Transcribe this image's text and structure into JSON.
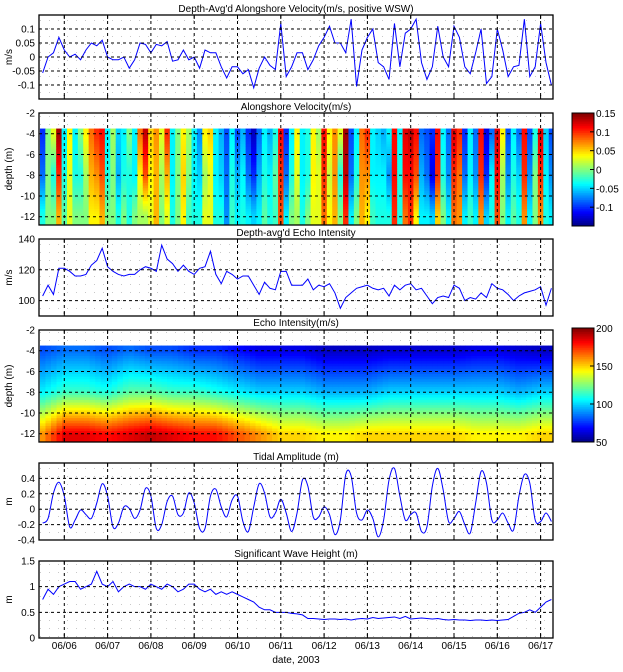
{
  "figure": {
    "xlabel": "date, 2003",
    "date_ticks": [
      "06/06",
      "06/07",
      "06/08",
      "06/09",
      "06/10",
      "06/11",
      "06/12",
      "06/13",
      "06/14",
      "06/15",
      "06/16",
      "06/17"
    ],
    "line_color": "#0000ff",
    "grid": "dashed"
  },
  "time_3h": [
    "06/05 12:00",
    "06/05 15:00",
    "06/05 18:00",
    "06/05 21:00",
    "06/06 00:00",
    "06/06 03:00",
    "06/06 06:00",
    "06/06 09:00",
    "06/06 12:00",
    "06/06 15:00",
    "06/06 18:00",
    "06/06 21:00",
    "06/07 00:00",
    "06/07 03:00",
    "06/07 06:00",
    "06/07 09:00",
    "06/07 12:00",
    "06/07 15:00",
    "06/07 18:00",
    "06/07 21:00",
    "06/08 00:00",
    "06/08 03:00",
    "06/08 06:00",
    "06/08 09:00",
    "06/08 12:00",
    "06/08 15:00",
    "06/08 18:00",
    "06/08 21:00",
    "06/09 00:00",
    "06/09 03:00",
    "06/09 06:00",
    "06/09 09:00",
    "06/09 12:00",
    "06/09 15:00",
    "06/09 18:00",
    "06/09 21:00",
    "06/10 00:00",
    "06/10 03:00",
    "06/10 06:00",
    "06/10 09:00",
    "06/10 12:00",
    "06/10 15:00",
    "06/10 18:00",
    "06/10 21:00",
    "06/11 00:00",
    "06/11 03:00",
    "06/11 06:00",
    "06/11 09:00",
    "06/11 12:00",
    "06/11 15:00",
    "06/11 18:00",
    "06/11 21:00",
    "06/12 00:00",
    "06/12 03:00",
    "06/12 06:00",
    "06/12 09:00",
    "06/12 12:00",
    "06/12 15:00",
    "06/12 18:00",
    "06/12 21:00",
    "06/13 00:00",
    "06/13 03:00",
    "06/13 06:00",
    "06/13 09:00",
    "06/13 12:00",
    "06/13 15:00",
    "06/13 18:00",
    "06/13 21:00",
    "06/14 00:00",
    "06/14 03:00",
    "06/14 06:00",
    "06/14 09:00",
    "06/14 12:00",
    "06/14 15:00",
    "06/14 18:00",
    "06/14 21:00",
    "06/15 00:00",
    "06/15 03:00",
    "06/15 06:00",
    "06/15 09:00",
    "06/15 12:00",
    "06/15 15:00",
    "06/15 18:00",
    "06/15 21:00",
    "06/16 00:00",
    "06/16 03:00",
    "06/16 06:00",
    "06/16 09:00",
    "06/16 12:00",
    "06/16 15:00",
    "06/16 18:00",
    "06/16 21:00",
    "06/17 00:00",
    "06/17 03:00",
    "06/17 06:00"
  ],
  "chart_data": [
    {
      "type": "line",
      "title": "Depth-Avg'd Alongshore Velocity(m/s, positive WSW)",
      "ylabel": "m/s",
      "ylim": [
        -0.15,
        0.15
      ],
      "yticks": [
        "-0.1",
        "-0.05",
        "0",
        "0.05",
        "0.1"
      ],
      "x_ref": "time_3h",
      "values": [
        -0.057,
        0.0,
        0.015,
        0.07,
        0.025,
        0.0,
        0.01,
        -0.01,
        0.025,
        0.05,
        0.04,
        0.06,
        0.0,
        -0.01,
        -0.01,
        0.0,
        -0.04,
        -0.01,
        0.05,
        0.045,
        0.015,
        0.045,
        0.04,
        0.055,
        -0.015,
        -0.01,
        0.025,
        -0.01,
        0.0,
        -0.04,
        0.025,
        0.015,
        0.015,
        -0.035,
        -0.075,
        -0.035,
        -0.035,
        -0.06,
        -0.045,
        -0.11,
        -0.04,
        0.0,
        -0.03,
        -0.045,
        0.12,
        -0.07,
        -0.035,
        0.015,
        0.015,
        -0.045,
        -0.01,
        0.04,
        0.07,
        0.11,
        0.05,
        0.05,
        0.015,
        0.135,
        -0.105,
        0.025,
        0.07,
        0.1,
        -0.02,
        -0.035,
        -0.08,
        0.12,
        -0.035,
        0.085,
        0.1,
        0.135,
        -0.02,
        -0.08,
        -0.035,
        0.11,
        0.0,
        -0.035,
        0.11,
        0.07,
        -0.035,
        -0.06,
        0.015,
        0.1,
        -0.095,
        -0.07,
        0.1,
        0.025,
        -0.07,
        -0.035,
        -0.03,
        0.135,
        -0.07,
        -0.035,
        0.12,
        -0.02,
        -0.1
      ]
    },
    {
      "type": "heatmap",
      "title": "Alongshore Velocity(m/s)",
      "ylabel": "depth (m)",
      "ylim": [
        -12.8,
        -2
      ],
      "yticks": [
        "-2",
        "-4",
        "-6",
        "-8",
        "-10",
        "-12"
      ],
      "depth_range": [
        -3.5,
        -12.6
      ],
      "depths": [
        -4,
        -8,
        -12
      ],
      "x_ref": "time_3h",
      "colormap": "jet",
      "clim": [
        -0.15,
        0.15
      ],
      "colorbar_ticks": [
        "0.15",
        "0.1",
        "0.05",
        "0",
        "-0.05",
        "-0.1"
      ],
      "values": [
        [
          -0.1,
          -0.08,
          -0.03
        ],
        [
          0,
          0,
          0
        ],
        [
          0.03,
          -0.03,
          0
        ],
        [
          0.14,
          0.1,
          0.06
        ],
        [
          -0.04,
          -0.03,
          -0.01
        ],
        [
          0.04,
          0.03,
          0.03
        ],
        [
          -0.04,
          -0.03,
          0
        ],
        [
          0,
          -0.03,
          0
        ],
        [
          0.04,
          0.01,
          0
        ],
        [
          0.08,
          0.06,
          0.04
        ],
        [
          0.1,
          0.07,
          0.04
        ],
        [
          0.11,
          0.09,
          0.06
        ],
        [
          -0.04,
          -0.03,
          0
        ],
        [
          0.01,
          0,
          0
        ],
        [
          -0.05,
          -0.06,
          -0.03
        ],
        [
          -0.04,
          -0.03,
          0
        ],
        [
          0,
          -0.03,
          -0.03
        ],
        [
          -0.04,
          -0.04,
          0
        ],
        [
          0.08,
          0.04,
          0.01
        ],
        [
          0.13,
          0.09,
          0.01
        ],
        [
          0.05,
          0.04,
          0.03
        ],
        [
          0.07,
          0.06,
          0.06
        ],
        [
          0.03,
          0.01,
          0
        ],
        [
          0.1,
          0.06,
          0.03
        ],
        [
          -0.04,
          -0.04,
          -0.03
        ],
        [
          0,
          0,
          0
        ],
        [
          0.04,
          0.05,
          0.04
        ],
        [
          0.01,
          0,
          -0.02
        ],
        [
          -0.04,
          -0.04,
          -0.03
        ],
        [
          -0.07,
          -0.05,
          -0.03
        ],
        [
          0.04,
          0.01,
          0.03
        ],
        [
          0.05,
          0.03,
          0.03
        ],
        [
          -0.04,
          -0.04,
          -0.03
        ],
        [
          -0.06,
          -0.05,
          -0.03
        ],
        [
          -0.09,
          -0.08,
          -0.07
        ],
        [
          -0.04,
          -0.03,
          -0.02
        ],
        [
          -0.09,
          -0.06,
          -0.04
        ],
        [
          -0.06,
          -0.04,
          -0.03
        ],
        [
          -0.1,
          -0.08,
          -0.04
        ],
        [
          -0.13,
          -0.1,
          -0.05
        ],
        [
          -0.08,
          -0.06,
          -0.04
        ],
        [
          -0.04,
          -0.03,
          -0.01
        ],
        [
          -0.06,
          -0.04,
          -0.03
        ],
        [
          -0.03,
          -0.01,
          -0.02
        ],
        [
          0.11,
          0.1,
          0.09
        ],
        [
          -0.1,
          -0.08,
          -0.04
        ],
        [
          -0.04,
          -0.03,
          0
        ],
        [
          0.04,
          0.03,
          0.01
        ],
        [
          -0.04,
          -0.04,
          -0.03
        ],
        [
          -0.03,
          -0.03,
          0
        ],
        [
          0.04,
          0.04,
          0.03
        ],
        [
          0.01,
          0.03,
          0.03
        ],
        [
          0.11,
          0.1,
          0.08
        ],
        [
          0.04,
          0.02,
          0.04
        ],
        [
          0.07,
          0.07,
          0.06
        ],
        [
          0.03,
          -0.03,
          0
        ],
        [
          0.14,
          0.13,
          0.1
        ],
        [
          -0.09,
          -0.08,
          -0.04
        ],
        [
          -0.04,
          -0.03,
          0
        ],
        [
          0.08,
          0.07,
          0.06
        ],
        [
          0.1,
          0.07,
          0.04
        ],
        [
          -0.04,
          -0.04,
          -0.02
        ],
        [
          -0.05,
          -0.04,
          -0.03
        ],
        [
          -0.06,
          -0.04,
          -0.03
        ],
        [
          -0.04,
          -0.07,
          -0.03
        ],
        [
          0.11,
          0.11,
          0.1
        ],
        [
          -0.04,
          -0.03,
          -0.03
        ],
        [
          0.12,
          0.11,
          0.08
        ],
        [
          0.13,
          0.11,
          0.1
        ],
        [
          0.11,
          0.09,
          0.04
        ],
        [
          -0.08,
          -0.06,
          -0.04
        ],
        [
          -0.09,
          -0.08,
          -0.04
        ],
        [
          -0.1,
          -0.12,
          -0.05
        ],
        [
          0.11,
          0.1,
          0.05
        ],
        [
          -0.04,
          -0.03,
          0
        ],
        [
          -0.08,
          -0.07,
          -0.04
        ],
        [
          0.12,
          0.1,
          0.08
        ],
        [
          0.1,
          0.08,
          0.07
        ],
        [
          -0.1,
          -0.08,
          -0.04
        ],
        [
          -0.04,
          -0.04,
          -0.02
        ],
        [
          -0.08,
          -0.07,
          -0.04
        ],
        [
          0.11,
          0.1,
          0.07
        ],
        [
          -0.12,
          -0.1,
          -0.05
        ],
        [
          -0.08,
          -0.04,
          -0.03
        ],
        [
          0.12,
          0.11,
          0.09
        ],
        [
          0.04,
          0.01,
          0
        ],
        [
          -0.09,
          -0.07,
          -0.04
        ],
        [
          -0.04,
          -0.03,
          -0.01
        ],
        [
          -0.08,
          -0.05,
          -0.03
        ],
        [
          0.11,
          0.1,
          0.07
        ],
        [
          -0.09,
          -0.07,
          -0.04
        ],
        [
          -0.03,
          0,
          0
        ],
        [
          0.12,
          0.1,
          0.07
        ],
        [
          -0.05,
          -0.04,
          -0.03
        ],
        [
          -0.09,
          -0.07,
          -0.04
        ]
      ]
    },
    {
      "type": "line",
      "title": "Depth-avg'd Echo Intensity",
      "ylabel": "m/s",
      "ylim": [
        90,
        140
      ],
      "yticks": [
        "100",
        "120",
        "140"
      ],
      "x_ref": "time_3h",
      "values": [
        103,
        110,
        104,
        121,
        121,
        119,
        116,
        116,
        117,
        123,
        126,
        134,
        122,
        119,
        117,
        116,
        117,
        117,
        120,
        122,
        121,
        119,
        136,
        127,
        124,
        119,
        123,
        119,
        117,
        121,
        122,
        132,
        117,
        111,
        119,
        117,
        114,
        116,
        116,
        110,
        104,
        112,
        108,
        107,
        119,
        119,
        110,
        110,
        110,
        114,
        107,
        110,
        109,
        111,
        105,
        95,
        102,
        105,
        108,
        109,
        110,
        108,
        107,
        108,
        103,
        110,
        107,
        110,
        111,
        107,
        108,
        103,
        98,
        102,
        103,
        102,
        110,
        108,
        100,
        102,
        101,
        105,
        102,
        111,
        108,
        107,
        104,
        100,
        103,
        105,
        106,
        107,
        109,
        97,
        108
      ]
    },
    {
      "type": "heatmap",
      "title": "Echo Intensity(m/s)",
      "ylabel": "depth (m)",
      "ylim": [
        -12.8,
        -2
      ],
      "yticks": [
        "-2",
        "-4",
        "-6",
        "-8",
        "-10",
        "-12"
      ],
      "depth_range": [
        -3.5,
        -12.6
      ],
      "depths": [
        -4,
        -8,
        -12
      ],
      "x": [
        "06/05 12:00",
        "06/06 00:00",
        "06/06 12:00",
        "06/07 00:00",
        "06/07 12:00",
        "06/08 00:00",
        "06/08 12:00",
        "06/09 00:00",
        "06/09 12:00",
        "06/10 00:00",
        "06/10 12:00",
        "06/11 00:00",
        "06/11 12:00",
        "06/12 00:00",
        "06/12 12:00",
        "06/13 00:00",
        "06/13 12:00",
        "06/14 00:00",
        "06/14 12:00",
        "06/15 00:00",
        "06/15 12:00",
        "06/16 00:00",
        "06/16 12:00",
        "06/17 00:00"
      ],
      "colormap": "jet",
      "clim": [
        50,
        200
      ],
      "colorbar_ticks": [
        "200",
        "150",
        "100",
        "50"
      ],
      "values": [
        [
          80,
          105,
          160
        ],
        [
          85,
          115,
          185
        ],
        [
          85,
          115,
          185
        ],
        [
          80,
          110,
          180
        ],
        [
          85,
          120,
          185
        ],
        [
          80,
          120,
          190
        ],
        [
          80,
          115,
          185
        ],
        [
          75,
          115,
          180
        ],
        [
          75,
          110,
          180
        ],
        [
          70,
          105,
          170
        ],
        [
          65,
          100,
          160
        ],
        [
          65,
          100,
          150
        ],
        [
          65,
          100,
          150
        ],
        [
          60,
          95,
          145
        ],
        [
          60,
          95,
          145
        ],
        [
          60,
          95,
          150
        ],
        [
          62,
          100,
          150
        ],
        [
          62,
          100,
          150
        ],
        [
          62,
          100,
          150
        ],
        [
          62,
          100,
          150
        ],
        [
          65,
          100,
          145
        ],
        [
          65,
          100,
          145
        ],
        [
          62,
          95,
          145
        ],
        [
          60,
          100,
          150
        ]
      ]
    },
    {
      "type": "line",
      "title": "Tidal Amplitude (m)",
      "ylabel": "m",
      "ylim": [
        -0.4,
        0.6
      ],
      "yticks": [
        "-0.4",
        "-0.2",
        "0",
        "0.2",
        "0.4"
      ],
      "x_ref": "time_3h",
      "values": [
        -0.18,
        -0.12,
        0.21,
        0.35,
        0.17,
        -0.23,
        -0.14,
        -0.01,
        -0.07,
        -0.12,
        0.08,
        0.33,
        0.17,
        -0.23,
        -0.18,
        0.03,
        0.01,
        -0.12,
        -0.01,
        0.27,
        0.17,
        -0.25,
        -0.2,
        0.1,
        0.17,
        -0.07,
        -0.05,
        0.21,
        0.08,
        -0.25,
        -0.25,
        0.17,
        0.26,
        0.03,
        -0.1,
        0.12,
        0.17,
        -0.16,
        -0.29,
        0.03,
        0.33,
        0.21,
        -0.1,
        -0.05,
        0.13,
        -0.05,
        -0.29,
        -0.05,
        0.38,
        0.3,
        -0.1,
        -0.1,
        0.03,
        -0.07,
        -0.33,
        -0.14,
        0.45,
        0.43,
        -0.05,
        -0.14,
        -0.01,
        -0.12,
        -0.36,
        -0.14,
        0.38,
        0.53,
        0.17,
        -0.14,
        -0.07,
        -0.05,
        -0.29,
        -0.23,
        0.3,
        0.53,
        0.25,
        -0.16,
        -0.12,
        -0.03,
        -0.2,
        -0.31,
        0.08,
        0.49,
        0.34,
        -0.14,
        -0.14,
        -0.05,
        -0.18,
        -0.27,
        0.17,
        0.45,
        0.34,
        -0.14,
        -0.16,
        -0.05,
        -0.16
      ]
    },
    {
      "type": "line",
      "title": "Significant Wave Height (m)",
      "ylabel": "m",
      "ylim": [
        0,
        1.5
      ],
      "yticks": [
        "0",
        "0.5",
        "1",
        "1.5"
      ],
      "x_ref": "time_3h",
      "values": [
        0.75,
        0.95,
        0.85,
        1.0,
        1.05,
        1.1,
        1.1,
        0.95,
        1.0,
        1.05,
        1.3,
        1.05,
        1.0,
        1.1,
        0.9,
        1.0,
        1.05,
        1.0,
        1.0,
        0.95,
        1.05,
        1.0,
        0.95,
        1.05,
        1.0,
        0.9,
        0.95,
        1.05,
        1.05,
        0.95,
        0.9,
        0.95,
        0.85,
        0.9,
        0.85,
        0.9,
        0.85,
        0.8,
        0.75,
        0.7,
        0.6,
        0.55,
        0.55,
        0.5,
        0.5,
        0.5,
        0.48,
        0.47,
        0.45,
        0.38,
        0.38,
        0.37,
        0.36,
        0.37,
        0.37,
        0.36,
        0.37,
        0.35,
        0.37,
        0.38,
        0.37,
        0.4,
        0.38,
        0.39,
        0.4,
        0.41,
        0.38,
        0.42,
        0.37,
        0.38,
        0.39,
        0.38,
        0.37,
        0.38,
        0.36,
        0.35,
        0.36,
        0.35,
        0.35,
        0.34,
        0.35,
        0.35,
        0.34,
        0.35,
        0.34,
        0.35,
        0.36,
        0.42,
        0.48,
        0.5,
        0.55,
        0.5,
        0.6,
        0.7,
        0.75
      ]
    }
  ]
}
